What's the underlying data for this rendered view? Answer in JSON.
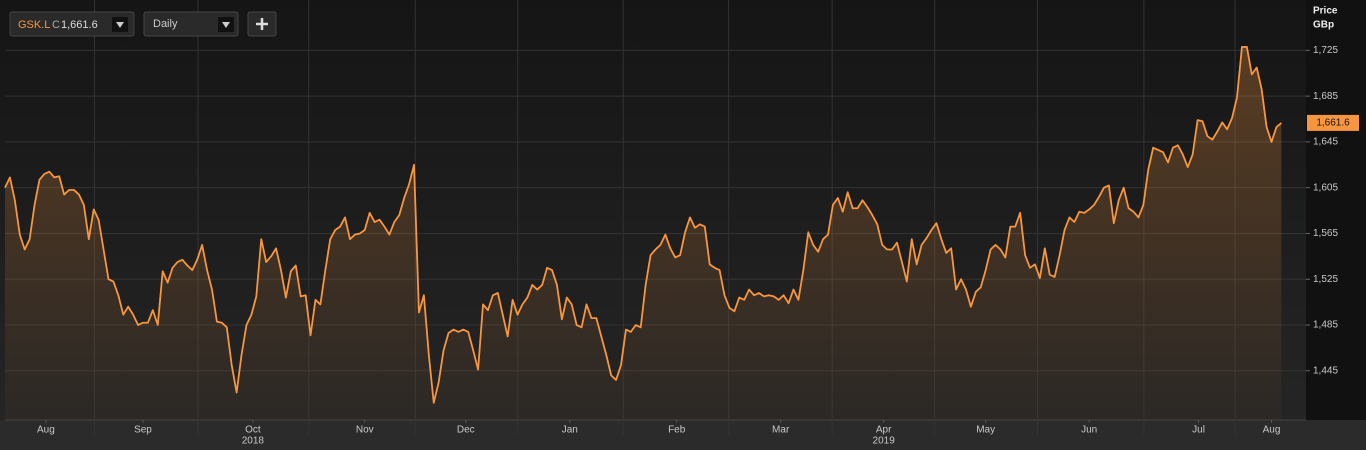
{
  "chart_data": {
    "type": "area-line",
    "ticker": "GSK.L",
    "close_prefix": "C",
    "last_label": "1,661.6",
    "interval": "Daily",
    "y_axis_title": "Price",
    "y_axis_unit": "GBp",
    "color": "#f7963f",
    "values": [
      1605,
      1614,
      1594,
      1564,
      1551,
      1560,
      1590,
      1612,
      1617,
      1619,
      1614,
      1615,
      1599,
      1603,
      1603,
      1599,
      1590,
      1560,
      1586,
      1577,
      1551,
      1525,
      1523,
      1511,
      1494,
      1501,
      1494,
      1485,
      1487,
      1487,
      1498,
      1485,
      1532,
      1522,
      1535,
      1540,
      1542,
      1537,
      1533,
      1542,
      1555,
      1533,
      1516,
      1488,
      1487,
      1483,
      1450,
      1426,
      1459,
      1485,
      1494,
      1510,
      1560,
      1540,
      1545,
      1552,
      1533,
      1509,
      1532,
      1537,
      1510,
      1511,
      1476,
      1507,
      1503,
      1533,
      1560,
      1568,
      1571,
      1579,
      1560,
      1564,
      1565,
      1568,
      1583,
      1575,
      1577,
      1571,
      1564,
      1575,
      1581,
      1596,
      1608,
      1625,
      1496,
      1511,
      1459,
      1417,
      1435,
      1463,
      1478,
      1481,
      1479,
      1481,
      1479,
      1463,
      1446,
      1503,
      1498,
      1511,
      1513,
      1494,
      1475,
      1507,
      1494,
      1503,
      1509,
      1520,
      1516,
      1520,
      1535,
      1533,
      1520,
      1490,
      1509,
      1503,
      1485,
      1483,
      1503,
      1491,
      1491,
      1475,
      1459,
      1441,
      1437,
      1450,
      1481,
      1479,
      1485,
      1483,
      1520,
      1546,
      1551,
      1555,
      1564,
      1552,
      1544,
      1546,
      1566,
      1579,
      1570,
      1573,
      1571,
      1538,
      1535,
      1533,
      1511,
      1500,
      1497,
      1509,
      1507,
      1516,
      1511,
      1513,
      1510,
      1511,
      1510,
      1507,
      1511,
      1504,
      1516,
      1507,
      1533,
      1566,
      1555,
      1549,
      1560,
      1564,
      1590,
      1596,
      1584,
      1601,
      1587,
      1587,
      1594,
      1588,
      1581,
      1573,
      1555,
      1551,
      1551,
      1557,
      1540,
      1523,
      1560,
      1538,
      1555,
      1561,
      1568,
      1574,
      1560,
      1548,
      1552,
      1516,
      1525,
      1516,
      1501,
      1514,
      1518,
      1533,
      1551,
      1555,
      1551,
      1544,
      1571,
      1571,
      1583,
      1546,
      1535,
      1538,
      1526,
      1552,
      1529,
      1527,
      1546,
      1568,
      1579,
      1575,
      1584,
      1583,
      1586,
      1590,
      1597,
      1605,
      1607,
      1574,
      1594,
      1605,
      1587,
      1584,
      1579,
      1590,
      1621,
      1640,
      1638,
      1636,
      1627,
      1640,
      1642,
      1634,
      1623,
      1634,
      1664,
      1663,
      1650,
      1647,
      1654,
      1662,
      1656,
      1666,
      1684,
      1728,
      1728,
      1704,
      1710,
      1691,
      1658,
      1645,
      1658,
      1661.6
    ],
    "xlim": [
      0,
      264
    ],
    "xticks": [
      {
        "value": 8.3,
        "label": "Aug"
      },
      {
        "value": 28,
        "label": "Sep"
      },
      {
        "value": 50.3,
        "label": "Oct",
        "year": "2018"
      },
      {
        "value": 73,
        "label": "Nov"
      },
      {
        "value": 93.5,
        "label": "Dec"
      },
      {
        "value": 114.6,
        "label": "Jan"
      },
      {
        "value": 136.3,
        "label": "Feb"
      },
      {
        "value": 157.4,
        "label": "Mar"
      },
      {
        "value": 178.3,
        "label": "Apr",
        "year": "2019"
      },
      {
        "value": 199,
        "label": "May"
      },
      {
        "value": 220,
        "label": "Jun"
      },
      {
        "value": 242.2,
        "label": "Jul"
      },
      {
        "value": 257,
        "label": "Aug"
      }
    ],
    "ylim": [
      1402,
      1769
    ],
    "yticks": [
      {
        "value": 1445,
        "label": "1,445"
      },
      {
        "value": 1485,
        "label": "1,485"
      },
      {
        "value": 1525,
        "label": "1,525"
      },
      {
        "value": 1565,
        "label": "1,565"
      },
      {
        "value": 1605,
        "label": "1,605"
      },
      {
        "value": 1645,
        "label": "1,645"
      },
      {
        "value": 1685,
        "label": "1,685"
      },
      {
        "value": 1725,
        "label": "1,725"
      }
    ],
    "grid": true
  }
}
